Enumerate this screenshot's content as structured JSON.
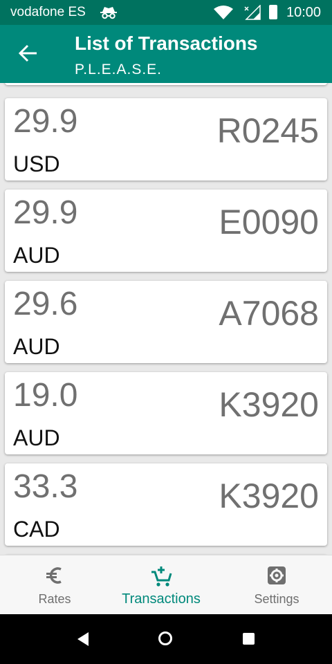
{
  "status_bar": {
    "carrier": "vodafone ES",
    "time": "10:00"
  },
  "app_bar": {
    "title": "List of Transactions",
    "subtitle": "P.L.E.A.S.E."
  },
  "transactions": [
    {
      "amount": "29.9",
      "currency": "USD",
      "code": "R0245"
    },
    {
      "amount": "29.9",
      "currency": "AUD",
      "code": "E0090"
    },
    {
      "amount": "29.6",
      "currency": "AUD",
      "code": "A7068"
    },
    {
      "amount": "19.0",
      "currency": "AUD",
      "code": "K3920"
    },
    {
      "amount": "33.3",
      "currency": "CAD",
      "code": "K3920"
    }
  ],
  "bottom_nav": {
    "items": [
      {
        "label": "Rates",
        "icon": "euro-icon"
      },
      {
        "label": "Transactions",
        "icon": "cart-add-icon",
        "active": true
      },
      {
        "label": "Settings",
        "icon": "gear-icon"
      }
    ]
  },
  "colors": {
    "primary": "#00897b",
    "primary_dark": "#00725f"
  }
}
